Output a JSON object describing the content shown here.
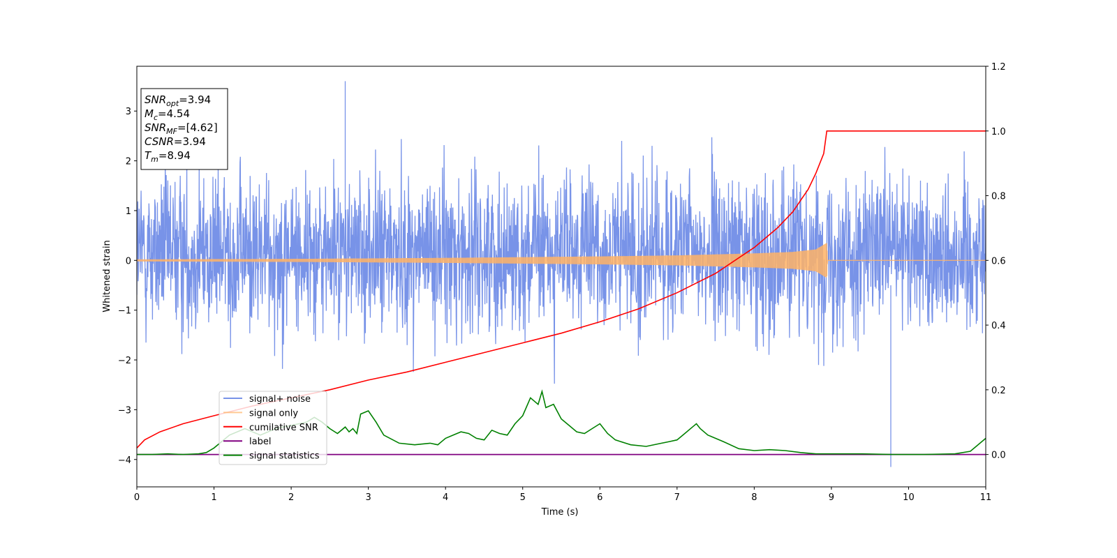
{
  "chart_data": {
    "type": "line",
    "xlabel": "Time (s)",
    "ylabel": "Whitened strain",
    "xlim": [
      0,
      11
    ],
    "ylim": [
      -4.55,
      3.9
    ],
    "ylim_right": [
      -0.1,
      1.2
    ],
    "x_ticks": [
      0,
      1,
      2,
      3,
      4,
      5,
      6,
      7,
      8,
      9,
      10,
      11
    ],
    "y_ticks": [
      -4,
      -3,
      -2,
      -1,
      0,
      1,
      2,
      3
    ],
    "y_ticks_right": [
      0.0,
      0.2,
      0.4,
      0.6,
      0.8,
      1.0,
      1.2
    ],
    "grid": false,
    "legend_position": "lower-left",
    "legend": [
      "signal+ noise",
      "signal only",
      "cumilative SNR",
      "label",
      "signal statistics"
    ],
    "annotation": {
      "lines": [
        {
          "name": "SNR",
          "sub": "opt",
          "value": "=3.94"
        },
        {
          "name": "M",
          "sub": "c",
          "value": "=4.54"
        },
        {
          "name": "SNR",
          "sub": "MF",
          "value": "=[4.62]"
        },
        {
          "name": "CSNR",
          "sub": "",
          "value": "=3.94"
        },
        {
          "name": "T",
          "sub": "m",
          "value": "=8.94"
        }
      ]
    },
    "series": [
      {
        "name": "signal+ noise",
        "color": "#7893e8",
        "axis": "left",
        "description_values": {
          "t_start": 0,
          "t_end": 11,
          "typical_range": [
            -1.5,
            1.9
          ],
          "extreme_max": 3.6,
          "extreme_min": -4.15
        }
      },
      {
        "name": "signal only",
        "color": "#ffb366",
        "axis": "left",
        "envelope": {
          "t": [
            0,
            2,
            4,
            6,
            7,
            8,
            8.5,
            8.8,
            8.94,
            8.95,
            11
          ],
          "amp": [
            0.02,
            0.03,
            0.05,
            0.08,
            0.1,
            0.14,
            0.17,
            0.22,
            0.35,
            0,
            0
          ]
        }
      },
      {
        "name": "cumilative SNR",
        "color": "#ff0000",
        "axis": "right",
        "x": [
          0,
          0.1,
          0.3,
          0.6,
          1,
          1.5,
          2,
          2.5,
          3,
          3.5,
          4,
          4.5,
          5,
          5.5,
          6,
          6.5,
          7,
          7.5,
          8,
          8.3,
          8.5,
          8.7,
          8.8,
          8.9,
          8.94,
          11
        ],
        "values": [
          0.02,
          0.045,
          0.07,
          0.095,
          0.12,
          0.15,
          0.175,
          0.2,
          0.23,
          0.255,
          0.285,
          0.315,
          0.345,
          0.375,
          0.41,
          0.45,
          0.5,
          0.56,
          0.64,
          0.7,
          0.75,
          0.82,
          0.87,
          0.93,
          1.0,
          1.0
        ]
      },
      {
        "name": "label",
        "color": "#800080",
        "axis": "right",
        "x": [
          0,
          11
        ],
        "values": [
          0.0,
          0.0
        ]
      },
      {
        "name": "signal statistics",
        "color": "#008000",
        "axis": "right",
        "x": [
          0,
          0.2,
          0.4,
          0.6,
          0.8,
          0.9,
          1.0,
          1.2,
          1.4,
          1.6,
          1.8,
          2.0,
          2.2,
          2.3,
          2.4,
          2.5,
          2.6,
          2.7,
          2.75,
          2.8,
          2.85,
          2.9,
          3.0,
          3.1,
          3.2,
          3.4,
          3.6,
          3.8,
          3.9,
          4.0,
          4.1,
          4.2,
          4.3,
          4.4,
          4.5,
          4.6,
          4.7,
          4.8,
          4.9,
          5.0,
          5.1,
          5.2,
          5.25,
          5.3,
          5.4,
          5.5,
          5.6,
          5.7,
          5.8,
          5.9,
          6.0,
          6.1,
          6.2,
          6.4,
          6.6,
          6.8,
          6.9,
          7.0,
          7.1,
          7.2,
          7.25,
          7.3,
          7.4,
          7.6,
          7.8,
          8.0,
          8.2,
          8.4,
          8.6,
          8.8,
          9.0,
          9.4,
          9.8,
          10.2,
          10.6,
          10.8,
          11.0
        ],
        "values": [
          0.0,
          0.0,
          0.002,
          0.0,
          0.002,
          0.006,
          0.02,
          0.06,
          0.08,
          0.06,
          0.08,
          0.09,
          0.1,
          0.115,
          0.1,
          0.08,
          0.065,
          0.085,
          0.07,
          0.08,
          0.065,
          0.125,
          0.135,
          0.1,
          0.06,
          0.035,
          0.03,
          0.035,
          0.03,
          0.05,
          0.06,
          0.07,
          0.065,
          0.05,
          0.045,
          0.075,
          0.065,
          0.06,
          0.095,
          0.12,
          0.175,
          0.155,
          0.195,
          0.145,
          0.155,
          0.11,
          0.09,
          0.07,
          0.065,
          0.08,
          0.095,
          0.065,
          0.045,
          0.03,
          0.025,
          0.035,
          0.04,
          0.045,
          0.065,
          0.085,
          0.095,
          0.08,
          0.06,
          0.04,
          0.018,
          0.012,
          0.015,
          0.012,
          0.006,
          0.002,
          0.002,
          0.002,
          0.0,
          0.0,
          0.002,
          0.01,
          0.05
        ]
      }
    ]
  }
}
